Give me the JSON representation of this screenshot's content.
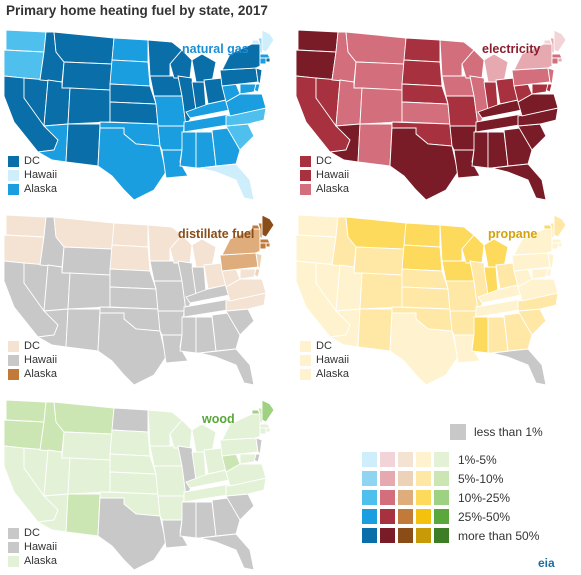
{
  "title": "Primary home heating fuel by state, 2017",
  "colors": {
    "none": "#c8c8c8",
    "scales": {
      "natural_gas": [
        "#cdeefa",
        "#8fd5f2",
        "#4fc0ee",
        "#1a9ee0",
        "#0a6ea8"
      ],
      "electricity": [
        "#f2d4d8",
        "#e7a9b0",
        "#d36f7c",
        "#a8313f",
        "#7a1c28"
      ],
      "distillate_fuel": [
        "#f4e3d3",
        "#ecd3b7",
        "#dfad7b",
        "#c27a38",
        "#8a4d17"
      ],
      "propane": [
        "#fff3cf",
        "#ffe7a6",
        "#fdd95c",
        "#f4c20c",
        "#c99a08"
      ],
      "wood": [
        "#e3f2d7",
        "#cce6b3",
        "#9fd183",
        "#5aa73b",
        "#3d7d26"
      ]
    }
  },
  "panels": {
    "natural_gas": {
      "label": "natural gas",
      "label_color": "#1a8ed4",
      "legend": [
        {
          "text": "DC",
          "swatch": "#0a6ea8"
        },
        {
          "text": "Hawaii",
          "swatch": "#cdeefa"
        },
        {
          "text": "Alaska",
          "swatch": "#1a9ee0"
        }
      ]
    },
    "electricity": {
      "label": "electricity",
      "label_color": "#8a1e2e",
      "legend": [
        {
          "text": "DC",
          "swatch": "#a8313f"
        },
        {
          "text": "Hawaii",
          "swatch": "#a8313f"
        },
        {
          "text": "Alaska",
          "swatch": "#d36f7c"
        }
      ]
    },
    "distillate_fuel": {
      "label": "distillate fuel",
      "label_color": "#8a4d17",
      "legend": [
        {
          "text": "DC",
          "swatch": "#f4e3d3"
        },
        {
          "text": "Hawaii",
          "swatch": "#c8c8c8"
        },
        {
          "text": "Alaska",
          "swatch": "#c27a38"
        }
      ]
    },
    "propane": {
      "label": "propane",
      "label_color": "#d4a20a",
      "legend": [
        {
          "text": "DC",
          "swatch": "#fff3cf"
        },
        {
          "text": "Hawaii",
          "swatch": "#fff3cf"
        },
        {
          "text": "Alaska",
          "swatch": "#fff3cf"
        }
      ]
    },
    "wood": {
      "label": "wood",
      "label_color": "#5aa73b",
      "legend": [
        {
          "text": "DC",
          "swatch": "#c8c8c8"
        },
        {
          "text": "Hawaii",
          "swatch": "#c8c8c8"
        },
        {
          "text": "Alaska",
          "swatch": "#e3f2d7"
        }
      ]
    }
  },
  "legend": {
    "none_label": "less than 1%",
    "bins": [
      "1%-5%",
      "5%-10%",
      "10%-25%",
      "25%-50%",
      "more than 50%"
    ]
  },
  "source_logo": "eia",
  "state_bins": {
    "natural_gas": {
      "WA": 2,
      "OR": 2,
      "CA": 4,
      "NV": 4,
      "ID": 4,
      "MT": 4,
      "WY": 4,
      "UT": 4,
      "CO": 4,
      "AZ": 3,
      "NM": 4,
      "ND": 3,
      "SD": 3,
      "NE": 4,
      "KS": 4,
      "OK": 3,
      "TX": 3,
      "MN": 4,
      "IA": 4,
      "MO": 3,
      "AR": 3,
      "LA": 3,
      "WI": 4,
      "IL": 4,
      "MI": 4,
      "IN": 4,
      "OH": 4,
      "KY": 3,
      "TN": 3,
      "MS": 3,
      "AL": 3,
      "GA": 3,
      "FL": 0,
      "SC": 2,
      "NC": 2,
      "VA": 3,
      "WV": 3,
      "PA": 4,
      "NY": 4,
      "VT": 0,
      "NH": 1,
      "ME": 0,
      "MA": 3,
      "RI": 4,
      "CT": 3,
      "NJ": 4,
      "DE": 3,
      "MD": 3
    },
    "electricity": {
      "WA": 4,
      "OR": 4,
      "CA": 3,
      "NV": 3,
      "ID": 2,
      "MT": 2,
      "WY": 2,
      "UT": 2,
      "CO": 2,
      "AZ": 4,
      "NM": 2,
      "ND": 3,
      "SD": 3,
      "NE": 3,
      "KS": 2,
      "OK": 3,
      "TX": 4,
      "MN": 2,
      "IA": 2,
      "MO": 3,
      "AR": 4,
      "LA": 4,
      "WI": 2,
      "IL": 2,
      "MI": 1,
      "IN": 3,
      "OH": 3,
      "KY": 4,
      "TN": 4,
      "MS": 4,
      "AL": 4,
      "GA": 4,
      "FL": 4,
      "SC": 4,
      "NC": 4,
      "VA": 4,
      "WV": 3,
      "PA": 2,
      "NY": 1,
      "VT": 0,
      "NH": 1,
      "ME": 0,
      "MA": 2,
      "RI": 1,
      "CT": 2,
      "NJ": 2,
      "DE": 3,
      "MD": 3
    },
    "distillate_fuel": {
      "WA": 0,
      "OR": 0,
      "CA": -1,
      "NV": -1,
      "ID": -1,
      "MT": 0,
      "WY": -1,
      "UT": -1,
      "CO": -1,
      "AZ": -1,
      "NM": -1,
      "ND": 0,
      "SD": 0,
      "NE": -1,
      "KS": -1,
      "OK": -1,
      "TX": -1,
      "MN": 0,
      "IA": -1,
      "MO": -1,
      "AR": -1,
      "LA": -1,
      "WI": 0,
      "IL": -1,
      "MI": 0,
      "IN": -1,
      "OH": 0,
      "KY": -1,
      "TN": -1,
      "MS": -1,
      "AL": -1,
      "GA": -1,
      "FL": -1,
      "SC": -1,
      "NC": 0,
      "VA": 0,
      "WV": 0,
      "PA": 2,
      "NY": 2,
      "VT": 3,
      "NH": 3,
      "ME": 4,
      "MA": 3,
      "RI": 3,
      "CT": 3,
      "NJ": 1,
      "DE": 1,
      "MD": 0
    },
    "propane": {
      "WA": 0,
      "OR": 0,
      "CA": 0,
      "NV": 0,
      "ID": 1,
      "MT": 2,
      "WY": 1,
      "UT": 0,
      "CO": 1,
      "AZ": 0,
      "NM": 1,
      "ND": 2,
      "SD": 2,
      "NE": 1,
      "KS": 1,
      "OK": 1,
      "TX": 0,
      "MN": 2,
      "IA": 2,
      "MO": 1,
      "AR": 1,
      "LA": 0,
      "WI": 2,
      "IL": 1,
      "MI": 2,
      "IN": 2,
      "OH": 1,
      "KY": 0,
      "TN": 0,
      "MS": 2,
      "AL": 1,
      "GA": 1,
      "FL": -1,
      "SC": 1,
      "NC": 1,
      "VA": 0,
      "WV": 0,
      "PA": 0,
      "NY": 0,
      "VT": 2,
      "NH": 1,
      "ME": 1,
      "MA": 0,
      "RI": 0,
      "CT": 0,
      "NJ": 0,
      "DE": 0,
      "MD": 0
    },
    "wood": {
      "WA": 1,
      "OR": 1,
      "CA": 0,
      "NV": 0,
      "ID": 1,
      "MT": 1,
      "WY": 0,
      "UT": 0,
      "CO": 0,
      "AZ": 0,
      "NM": 1,
      "ND": -1,
      "SD": 0,
      "NE": 0,
      "KS": 0,
      "OK": 0,
      "TX": -1,
      "MN": 0,
      "IA": 0,
      "MO": 0,
      "AR": 0,
      "LA": -1,
      "WI": 0,
      "IL": -1,
      "MI": 0,
      "IN": 0,
      "OH": 0,
      "KY": 0,
      "TN": 0,
      "MS": -1,
      "AL": -1,
      "GA": -1,
      "FL": -1,
      "SC": -1,
      "NC": 0,
      "VA": 0,
      "WV": 1,
      "PA": 0,
      "NY": 0,
      "VT": 2,
      "NH": 1,
      "ME": 2,
      "MA": 0,
      "RI": 0,
      "CT": 0,
      "NJ": -1,
      "DE": -1,
      "MD": 0
    }
  }
}
